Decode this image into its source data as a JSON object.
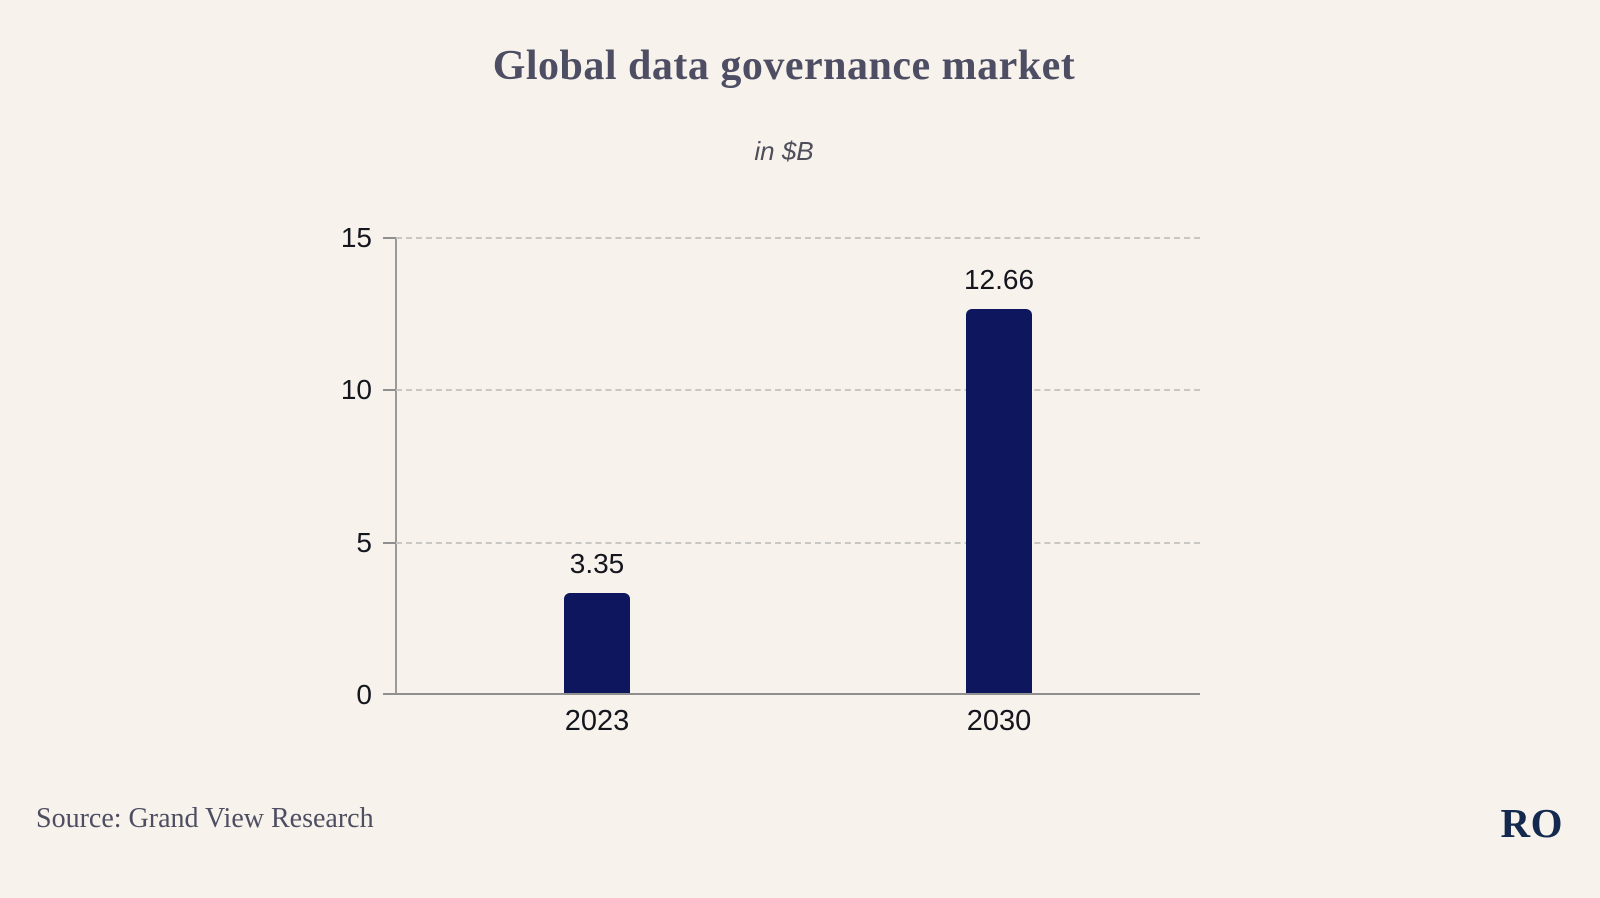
{
  "page": {
    "background_color": "#f7f2eb"
  },
  "chart_data": {
    "type": "bar",
    "title": "Global data governance market",
    "subtitle": "in $B",
    "categories": [
      "2023",
      "2030"
    ],
    "values": [
      3.35,
      12.66
    ],
    "value_labels": [
      "3.35",
      "12.66"
    ],
    "xlabel": "",
    "ylabel": "",
    "ylim": [
      0,
      15
    ],
    "yticks": [
      0,
      5,
      10,
      15
    ],
    "grid": "horizontal dashed gridlines at 5, 10, 15; solid baseline at 0",
    "legend": "none",
    "bar_color": "#0e165e",
    "gridline_color": "#c9c7c3",
    "axis_color": "#8f8f8f",
    "label_color": "#15151e"
  },
  "footer": {
    "source": "Source: Grand View Research",
    "logo": "RO",
    "logo_color": "#14294e"
  }
}
